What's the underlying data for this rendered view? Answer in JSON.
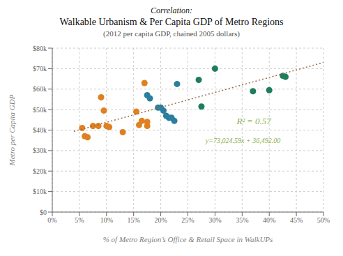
{
  "chart_data": {
    "type": "scatter",
    "title": [
      "Correlation:",
      "Walkable Urbanism & Per Capita GDP of Metro Regions"
    ],
    "subtitle": "(2012 per capita GDP, chained 2005 dollars)",
    "x_label": "% of Metro Region’s Office & Retail Space in WalkUPs",
    "y_label": "Metro per Capita GDP",
    "xlim": [
      0.0,
      0.5
    ],
    "ylim": [
      0,
      80000
    ],
    "xticks": [
      {
        "value": 0.0,
        "label": "0%"
      },
      {
        "value": 0.05,
        "label": "5%"
      },
      {
        "value": 0.1,
        "label": "10%"
      },
      {
        "value": 0.15,
        "label": "15%"
      },
      {
        "value": 0.2,
        "label": "20%"
      },
      {
        "value": 0.25,
        "label": "25%"
      },
      {
        "value": 0.3,
        "label": "30%"
      },
      {
        "value": 0.35,
        "label": "35%"
      },
      {
        "value": 0.4,
        "label": "40%"
      },
      {
        "value": 0.45,
        "label": "45%"
      },
      {
        "value": 0.5,
        "label": "50%"
      }
    ],
    "yticks": [
      {
        "value": 0,
        "label": "$0"
      },
      {
        "value": 10000,
        "label": "$10k"
      },
      {
        "value": 20000,
        "label": "$20k"
      },
      {
        "value": 30000,
        "label": "$30k"
      },
      {
        "value": 40000,
        "label": "$40k"
      },
      {
        "value": 50000,
        "label": "$50k"
      },
      {
        "value": 60000,
        "label": "$60k"
      },
      {
        "value": 70000,
        "label": "$70k"
      },
      {
        "value": 80000,
        "label": "$80k"
      }
    ],
    "grid": true,
    "series": [
      {
        "type": "scatter",
        "color": "#e08020",
        "x": [
          0.055,
          0.06,
          0.065,
          0.075,
          0.085,
          0.09,
          0.095,
          0.1,
          0.105,
          0.13,
          0.155,
          0.16,
          0.165,
          0.17,
          0.175,
          0.175
        ],
        "values": [
          41000,
          37000,
          36500,
          42000,
          42000,
          56000,
          49500,
          42000,
          41500,
          39000,
          49000,
          42500,
          44500,
          63000,
          44000,
          42000
        ]
      },
      {
        "type": "scatter",
        "color": "#2a7fa0",
        "x": [
          0.175,
          0.18,
          0.195,
          0.2,
          0.205,
          0.21,
          0.215,
          0.22,
          0.225,
          0.23
        ],
        "values": [
          57000,
          55500,
          51000,
          51000,
          49500,
          47000,
          46000,
          46000,
          44500,
          62500
        ]
      },
      {
        "type": "scatter",
        "color": "#1e7d5a",
        "x": [
          0.27,
          0.275,
          0.3,
          0.37,
          0.4,
          0.425,
          0.43
        ],
        "values": [
          64500,
          51500,
          70000,
          59000,
          59500,
          66500,
          66000
        ]
      },
      {
        "type": "line",
        "color": "#9b6b4a",
        "line_style": "dotted",
        "x": [
          0.04,
          0.5
        ],
        "values": [
          39412.9836,
          73004.295
        ]
      }
    ],
    "annotations": [
      {
        "text": "R² = 0.57",
        "color": "#8db050"
      },
      {
        "text": "y=73,024.59x + 36,492.00",
        "color": "#8db050"
      }
    ]
  }
}
